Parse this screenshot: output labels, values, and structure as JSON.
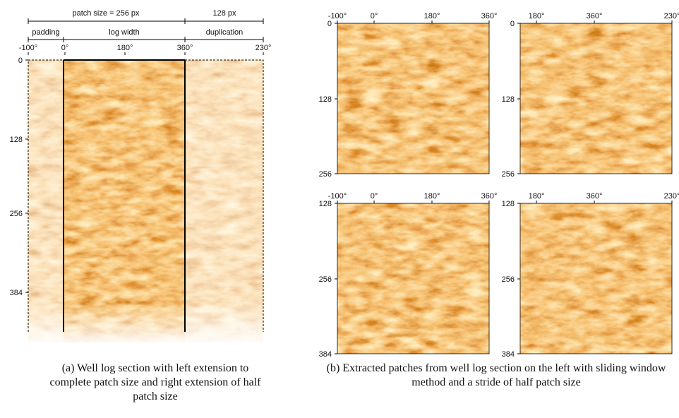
{
  "left_panel": {
    "header": {
      "patch_size": "patch size = 256 px",
      "half_size": "128 px",
      "padding": "padding",
      "log_width": "log width",
      "duplication": "duplication"
    },
    "x_ticks": [
      "-100°",
      "0°",
      "180°",
      "360°",
      "230°"
    ],
    "y_ticks": [
      "0",
      "128",
      "256",
      "384"
    ],
    "caption": "(a) Well log section with left extension to complete patch size and right extension of half patch size"
  },
  "right_panel": {
    "patches": [
      {
        "x_ticks": [
          "-100°",
          "0°",
          "180°",
          "360°"
        ],
        "y_ticks": [
          "0",
          "128",
          "256"
        ]
      },
      {
        "x_ticks": [
          "180°",
          "360°",
          "230°"
        ],
        "y_ticks": [
          "0",
          "128",
          "256"
        ]
      },
      {
        "x_ticks": [
          "-100°",
          "0°",
          "180°",
          "360°"
        ],
        "y_ticks": [
          "128",
          "256",
          "384"
        ]
      },
      {
        "x_ticks": [
          "180°",
          "360°",
          "230°"
        ],
        "y_ticks": [
          "128",
          "256",
          "384"
        ]
      }
    ],
    "caption": "(b) Extracted patches from well log section on the left with sliding window method and a stride of half patch size"
  }
}
